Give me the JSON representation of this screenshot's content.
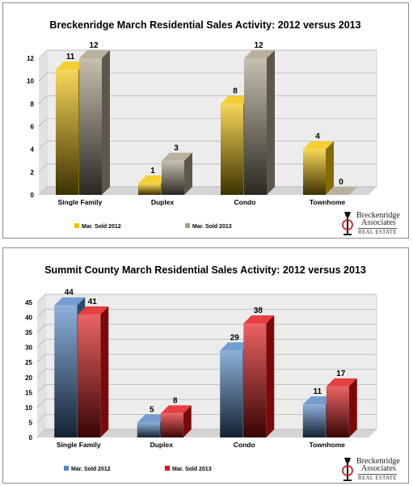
{
  "colors": {
    "yellow": "#f2c200",
    "tan": "#a89e86",
    "blue": "#4f86c6",
    "red": "#e01010"
  },
  "logo": {
    "line1": "Breckenridge",
    "line2": "Associates",
    "line3": "REAL ESTATE"
  },
  "chart_data": [
    {
      "type": "bar",
      "title": "Breckenridge March Residential Sales Activity:  2012 versus 2013",
      "categories": [
        "Single Family",
        "Duplex",
        "Condo",
        "Townhome"
      ],
      "ylim": [
        0,
        12
      ],
      "yticks": [
        0,
        2,
        4,
        6,
        8,
        10,
        12
      ],
      "grid": true,
      "legend_position": "bottom",
      "series": [
        {
          "name": "Mar. Sold 2012",
          "values": [
            11,
            1,
            8,
            4
          ],
          "color": "#f2c200"
        },
        {
          "name": "Mar. Sold 2013",
          "values": [
            12,
            3,
            12,
            0
          ],
          "color": "#a89e86"
        }
      ]
    },
    {
      "type": "bar",
      "title": "Summit County March Residential Sales Activity:  2012 versus 2013",
      "categories": [
        "Single Family",
        "Duplex",
        "Condo",
        "Townhome"
      ],
      "ylim": [
        0,
        45
      ],
      "yticks": [
        0,
        5,
        10,
        15,
        20,
        25,
        30,
        35,
        40,
        45
      ],
      "grid": true,
      "legend_position": "bottom",
      "series": [
        {
          "name": "Mar. Sold 2012",
          "values": [
            44,
            5,
            29,
            11
          ],
          "color": "#4f86c6"
        },
        {
          "name": "Mar. Sold 2013",
          "values": [
            41,
            8,
            38,
            17
          ],
          "color": "#e01010"
        }
      ]
    }
  ]
}
